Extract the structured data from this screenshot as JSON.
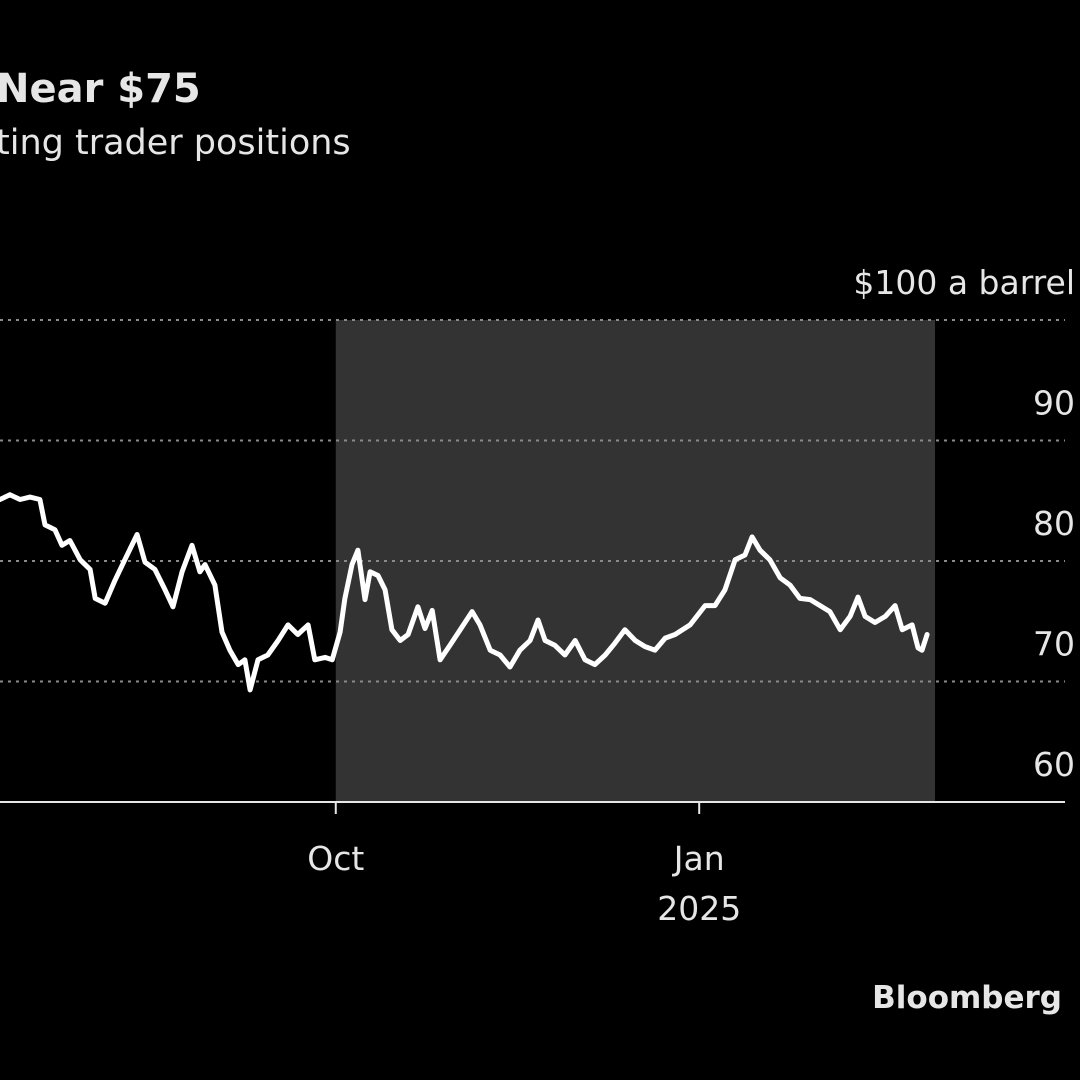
{
  "chart_data": {
    "type": "line",
    "title": "Near $75",
    "subtitle": "ting trader positions",
    "source": "Bloomberg",
    "xlim": [
      0,
      273.4
    ],
    "xticks": [
      {
        "value": 85,
        "label": "Oct"
      },
      {
        "value": 177,
        "label": "Jan"
      }
    ],
    "xticks_secondary": [
      {
        "value": 177,
        "label": "2025"
      }
    ],
    "shaded_range": [
      85,
      236.7
    ],
    "ylim": [
      60,
      100
    ],
    "yticks": [
      60,
      70,
      80,
      90,
      {
        "value": 100,
        "label": "$100 a barrel"
      }
    ],
    "grid": true,
    "series": [
      {
        "color": "#ffffff",
        "x": [
          0,
          2.5,
          5.1,
          7.6,
          10.1,
          11.4,
          13.9,
          15.7,
          17.7,
          20.3,
          22.8,
          24.1,
          26.6,
          29.1,
          31.6,
          34.7,
          36.7,
          39.2,
          41.8,
          43.8,
          46.1,
          48.6,
          50.6,
          51.9,
          54.4,
          56.2,
          58.2,
          60.3,
          62.0,
          63.3,
          65.3,
          67.8,
          70.4,
          72.9,
          75.4,
          78.0,
          79.7,
          82.3,
          84.1,
          86.1,
          87.3,
          89.1,
          90.6,
          92.4,
          93.7,
          95.7,
          97.5,
          99.2,
          101.3,
          103.3,
          105.8,
          107.6,
          109.4,
          111.4,
          113.9,
          116.5,
          119.5,
          121.5,
          124.1,
          126.6,
          129.1,
          131.6,
          134.2,
          136.2,
          138.0,
          140.5,
          143.0,
          145.6,
          148.1,
          150.6,
          153.2,
          155.7,
          158.2,
          160.8,
          163.3,
          165.8,
          168.4,
          170.9,
          174.7,
          178.5,
          181.0,
          183.5,
          186.1,
          188.6,
          190.4,
          192.4,
          194.9,
          197.5,
          200.0,
          202.5,
          205.1,
          207.6,
          210.1,
          212.7,
          215.2,
          217.2,
          219.0,
          221.5,
          224.1,
          226.6,
          228.4,
          230.9,
          232.4,
          233.4,
          234.7
        ],
        "values": [
          85.1,
          85.5,
          85.1,
          85.3,
          85.1,
          83.0,
          82.6,
          81.3,
          81.7,
          80.1,
          79.3,
          76.9,
          76.5,
          78.4,
          80.1,
          82.2,
          79.9,
          79.3,
          77.6,
          76.2,
          79.1,
          81.3,
          79.1,
          79.7,
          78.0,
          74.1,
          72.6,
          71.4,
          71.8,
          69.3,
          71.8,
          72.2,
          73.4,
          74.7,
          73.9,
          74.7,
          71.8,
          72.0,
          71.8,
          74.1,
          76.9,
          79.7,
          80.9,
          76.8,
          79.1,
          78.8,
          77.6,
          74.3,
          73.4,
          73.9,
          76.2,
          74.4,
          75.9,
          71.8,
          73.0,
          74.3,
          75.8,
          74.7,
          72.6,
          72.2,
          71.2,
          72.6,
          73.4,
          75.1,
          73.4,
          73.0,
          72.2,
          73.4,
          71.8,
          71.4,
          72.2,
          73.2,
          74.3,
          73.4,
          72.9,
          72.6,
          73.6,
          73.9,
          74.7,
          76.3,
          76.3,
          77.6,
          80.1,
          80.5,
          82.0,
          80.9,
          80.1,
          78.6,
          78.0,
          76.9,
          76.8,
          76.3,
          75.8,
          74.3,
          75.4,
          77.0,
          75.4,
          74.9,
          75.4,
          76.3,
          74.3,
          74.7,
          72.8,
          72.6,
          73.9
        ]
      }
    ]
  }
}
